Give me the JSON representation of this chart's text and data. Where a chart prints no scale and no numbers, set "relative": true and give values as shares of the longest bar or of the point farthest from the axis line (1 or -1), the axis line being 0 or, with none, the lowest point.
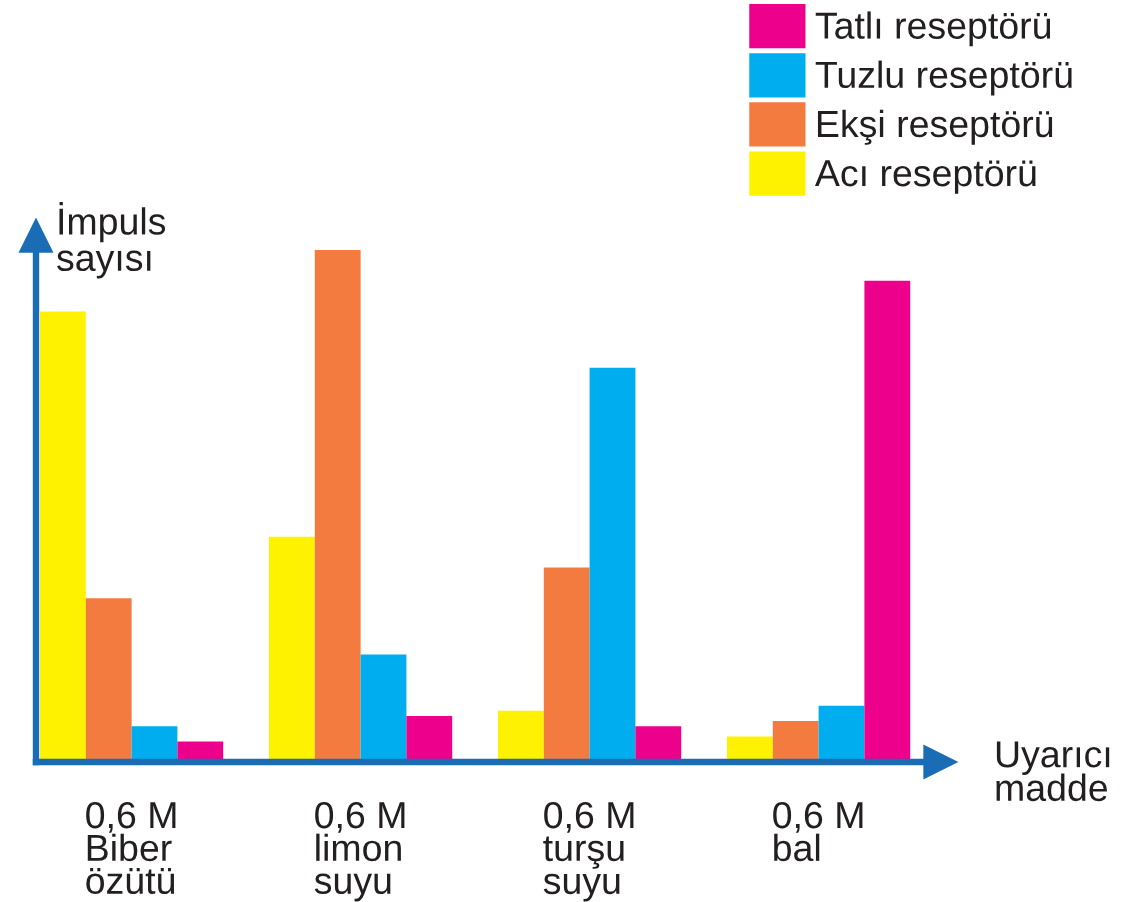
{
  "chart_data": {
    "type": "bar",
    "relative": true,
    "xlabel": "Uyarıcı\nmadde",
    "ylabel": "İmpuls\nsayısı",
    "categories": [
      "0,6 M\nBiber\nözütü",
      "0,6 M\nlimon\nsuyu",
      "0,6 M\nturşu\nsuyu",
      "0,6 M\nbal"
    ],
    "series": [
      {
        "name": "Acı reseptörü",
        "color": "#fff200",
        "values": [
          0.88,
          0.44,
          0.1,
          0.05
        ]
      },
      {
        "name": "Ekşi reseptörü",
        "color": "#f47b3f",
        "values": [
          0.32,
          1,
          0.38,
          0.08
        ]
      },
      {
        "name": "Tuzlu reseptörü",
        "color": "#00aeef",
        "values": [
          0.07,
          0.21,
          0.77,
          0.11
        ]
      },
      {
        "name": "Tatlı reseptörü",
        "color": "#ec008c",
        "values": [
          0.04,
          0.09,
          0.07,
          0.94
        ]
      }
    ],
    "legend": "top right",
    "tick_labels": "x"
  }
}
